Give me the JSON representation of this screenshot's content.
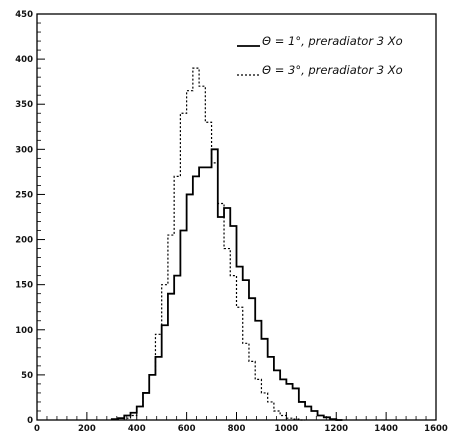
{
  "chart_data": {
    "type": "step-histogram",
    "xlim": [
      0,
      1600
    ],
    "ylim": [
      0,
      450
    ],
    "xticks": [
      0,
      200,
      400,
      600,
      800,
      1000,
      1200,
      1400,
      1600
    ],
    "yticks": [
      0,
      50,
      100,
      150,
      200,
      250,
      300,
      350,
      400,
      450
    ],
    "xtick_labels": [
      "0",
      "200",
      "400",
      "600",
      "800",
      "1000",
      "1200",
      "1400",
      "1600"
    ],
    "ytick_labels": [
      "0",
      "50",
      "100",
      "150",
      "200",
      "250",
      "300",
      "350",
      "400",
      "450"
    ],
    "legend_position": "top-right",
    "grid": false,
    "bin_width": 25,
    "series": [
      {
        "name": "Θ = 1°, preradiator 3 Xo",
        "style": "solid",
        "color": "#000000",
        "x": [
          300,
          325,
          350,
          375,
          400,
          425,
          450,
          475,
          500,
          525,
          550,
          575,
          600,
          625,
          650,
          675,
          700,
          725,
          750,
          775,
          800,
          825,
          850,
          875,
          900,
          925,
          950,
          975,
          1000,
          1025,
          1050,
          1075,
          1100,
          1125,
          1150,
          1175,
          1200
        ],
        "values": [
          1,
          2,
          5,
          8,
          15,
          30,
          50,
          70,
          105,
          140,
          160,
          210,
          250,
          270,
          280,
          280,
          300,
          225,
          235,
          215,
          170,
          155,
          135,
          110,
          90,
          70,
          55,
          45,
          40,
          35,
          20,
          15,
          10,
          5,
          3,
          1,
          0
        ]
      },
      {
        "name": "Θ = 3°, preradiator 3 Xo",
        "style": "dotted",
        "color": "#000000",
        "x": [
          350,
          375,
          400,
          425,
          450,
          475,
          500,
          525,
          550,
          575,
          600,
          625,
          650,
          675,
          700,
          725,
          750,
          775,
          800,
          825,
          850,
          875,
          900,
          925,
          950,
          975,
          1000,
          1025,
          1050
        ],
        "values": [
          2,
          5,
          15,
          30,
          50,
          95,
          150,
          205,
          270,
          340,
          365,
          390,
          370,
          330,
          285,
          240,
          190,
          160,
          125,
          85,
          65,
          45,
          30,
          20,
          10,
          5,
          2,
          1,
          0
        ]
      }
    ]
  }
}
